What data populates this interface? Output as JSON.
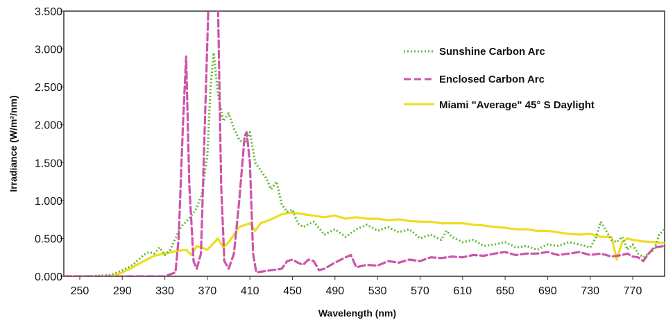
{
  "chart_data": {
    "type": "line",
    "title": "",
    "xlabel": "Wavelength (nm)",
    "ylabel": "Irradiance (W/m²/nm)",
    "xlim": [
      235,
      800
    ],
    "ylim": [
      0,
      3.5
    ],
    "x_ticks": [
      250,
      290,
      330,
      370,
      410,
      450,
      490,
      530,
      570,
      610,
      650,
      690,
      730,
      770
    ],
    "x_tick_labels": [
      "250",
      "290",
      "330",
      "370",
      "410",
      "450",
      "490",
      "530",
      "570",
      "610",
      "650",
      "690",
      "730",
      "770"
    ],
    "y_ticks": [
      0,
      0.5,
      1,
      1.5,
      2,
      2.5,
      3,
      3.5
    ],
    "y_tick_labels": [
      "0.000",
      "0.500",
      "1.000",
      "1.500",
      "2.000",
      "2.500",
      "3.000",
      "3.500"
    ],
    "grid": false,
    "legend": "top-right",
    "series": [
      {
        "name": "Sunshine Carbon Arc",
        "color": "#66bb33",
        "style": "dotted",
        "x": [
          235,
          260,
          280,
          290,
          300,
          310,
          315,
          320,
          325,
          330,
          335,
          340,
          345,
          350,
          355,
          360,
          365,
          370,
          373,
          376,
          380,
          385,
          390,
          395,
          400,
          405,
          410,
          415,
          420,
          425,
          430,
          435,
          440,
          445,
          450,
          455,
          460,
          470,
          480,
          490,
          500,
          510,
          520,
          530,
          540,
          550,
          560,
          570,
          580,
          590,
          595,
          600,
          610,
          620,
          630,
          640,
          650,
          660,
          670,
          680,
          690,
          700,
          710,
          720,
          730,
          735,
          740,
          745,
          750,
          755,
          760,
          765,
          770,
          775,
          780,
          785,
          790,
          795,
          800
        ],
        "y": [
          0.0,
          0.0,
          0.02,
          0.08,
          0.15,
          0.28,
          0.32,
          0.3,
          0.38,
          0.28,
          0.35,
          0.5,
          0.65,
          0.72,
          0.8,
          0.9,
          1.1,
          1.6,
          2.5,
          2.95,
          2.4,
          2.05,
          2.15,
          1.95,
          1.8,
          1.75,
          1.9,
          1.5,
          1.4,
          1.3,
          1.15,
          1.25,
          0.95,
          0.85,
          0.88,
          0.7,
          0.65,
          0.72,
          0.55,
          0.62,
          0.52,
          0.62,
          0.68,
          0.6,
          0.65,
          0.58,
          0.62,
          0.5,
          0.55,
          0.48,
          0.6,
          0.52,
          0.45,
          0.48,
          0.4,
          0.42,
          0.45,
          0.38,
          0.4,
          0.35,
          0.42,
          0.4,
          0.45,
          0.42,
          0.38,
          0.5,
          0.72,
          0.6,
          0.48,
          0.45,
          0.52,
          0.35,
          0.42,
          0.3,
          0.25,
          0.3,
          0.35,
          0.55,
          0.62
        ]
      },
      {
        "name": "Enclosed Carbon Arc",
        "color": "#cc55aa",
        "style": "dashed",
        "x": [
          235,
          270,
          300,
          330,
          340,
          343,
          347,
          350,
          353,
          357,
          360,
          364,
          368,
          371,
          374,
          377,
          380,
          383,
          386,
          390,
          395,
          400,
          405,
          407,
          410,
          413,
          416,
          420,
          430,
          440,
          445,
          450,
          455,
          460,
          465,
          470,
          475,
          480,
          490,
          500,
          505,
          510,
          520,
          530,
          540,
          550,
          560,
          570,
          580,
          590,
          600,
          610,
          620,
          630,
          640,
          650,
          660,
          670,
          680,
          690,
          700,
          710,
          720,
          730,
          740,
          750,
          760,
          765,
          770,
          775,
          780,
          785,
          790,
          800
        ],
        "y": [
          0.0,
          0.0,
          0.0,
          0.0,
          0.05,
          0.5,
          2.0,
          2.9,
          1.2,
          0.2,
          0.1,
          0.3,
          2.2,
          3.6,
          3.6,
          3.6,
          3.6,
          1.2,
          0.2,
          0.1,
          0.3,
          1.0,
          1.85,
          1.9,
          1.5,
          0.3,
          0.05,
          0.06,
          0.08,
          0.1,
          0.2,
          0.22,
          0.18,
          0.15,
          0.22,
          0.2,
          0.08,
          0.1,
          0.18,
          0.25,
          0.28,
          0.12,
          0.15,
          0.14,
          0.2,
          0.18,
          0.22,
          0.2,
          0.25,
          0.24,
          0.26,
          0.25,
          0.28,
          0.27,
          0.3,
          0.32,
          0.28,
          0.3,
          0.3,
          0.32,
          0.28,
          0.3,
          0.32,
          0.28,
          0.3,
          0.26,
          0.28,
          0.3,
          0.26,
          0.25,
          0.2,
          0.3,
          0.38,
          0.4
        ]
      },
      {
        "name": "Miami \"Average\" 45° S Daylight",
        "color": "#eedd22",
        "style": "solid",
        "x": [
          235,
          280,
          290,
          300,
          310,
          320,
          330,
          340,
          350,
          355,
          360,
          370,
          380,
          385,
          390,
          400,
          410,
          415,
          420,
          430,
          440,
          450,
          460,
          470,
          480,
          490,
          500,
          510,
          520,
          530,
          540,
          550,
          560,
          570,
          580,
          590,
          600,
          610,
          620,
          630,
          640,
          650,
          660,
          670,
          680,
          690,
          700,
          710,
          720,
          730,
          740,
          750,
          755,
          760,
          765,
          770,
          780,
          790,
          800
        ],
        "y": [
          0.0,
          0.0,
          0.05,
          0.12,
          0.2,
          0.27,
          0.3,
          0.33,
          0.35,
          0.28,
          0.4,
          0.35,
          0.5,
          0.38,
          0.45,
          0.65,
          0.7,
          0.6,
          0.7,
          0.75,
          0.82,
          0.84,
          0.82,
          0.8,
          0.78,
          0.8,
          0.76,
          0.78,
          0.76,
          0.76,
          0.74,
          0.75,
          0.73,
          0.72,
          0.72,
          0.7,
          0.7,
          0.7,
          0.68,
          0.67,
          0.65,
          0.64,
          0.62,
          0.62,
          0.6,
          0.6,
          0.58,
          0.56,
          0.55,
          0.56,
          0.52,
          0.52,
          0.22,
          0.45,
          0.5,
          0.48,
          0.46,
          0.45,
          0.44
        ]
      }
    ]
  }
}
